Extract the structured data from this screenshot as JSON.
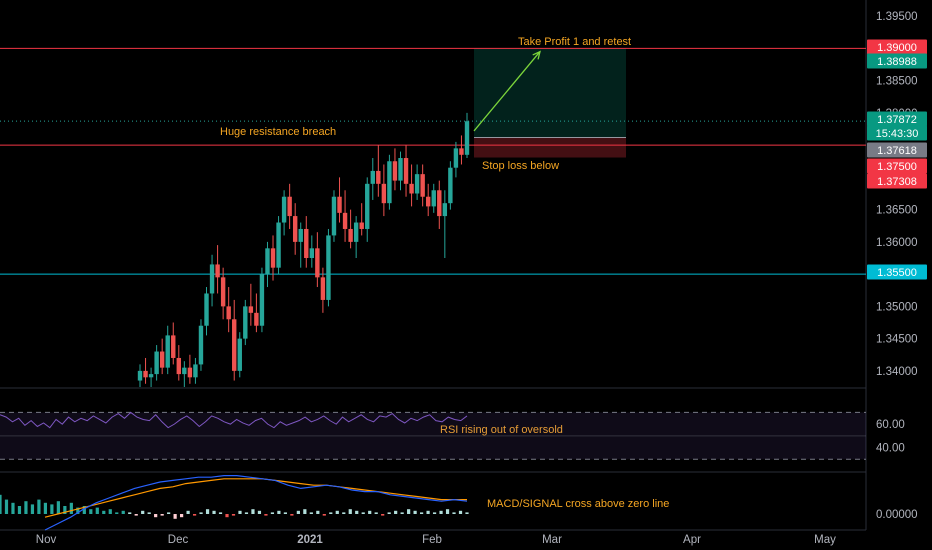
{
  "chart_data": {
    "type": "candlestick",
    "instrument_note": "",
    "price_axis": {
      "ticks": [
        "1.39500",
        "1.38500",
        "1.38000",
        "1.36500",
        "1.36000",
        "1.35500",
        "1.35000",
        "1.34500",
        "1.34000"
      ],
      "tick_values": [
        1.395,
        1.385,
        1.38,
        1.365,
        1.36,
        1.355,
        1.35,
        1.345,
        1.34
      ],
      "range": [
        1.3375,
        1.3975
      ]
    },
    "time_axis": {
      "labels": [
        "Nov",
        "Dec",
        "2021",
        "Feb",
        "Mar",
        "Apr",
        "May"
      ],
      "bold": [
        false,
        false,
        true,
        false,
        false,
        false,
        false
      ]
    },
    "price_tags": [
      {
        "label": "1.39000",
        "value": 1.39,
        "color": "#f23645"
      },
      {
        "label": "1.38988",
        "value": 1.38988,
        "color": "#089981"
      },
      {
        "label": "1.37872",
        "value": 1.37872,
        "color": "#089981"
      },
      {
        "label": "15:43:30",
        "value": 1.3774,
        "color": "#089981"
      },
      {
        "label": "1.37618",
        "value": 1.37618,
        "color": "#787b86"
      },
      {
        "label": "1.37500",
        "value": 1.375,
        "color": "#f23645"
      },
      {
        "label": "1.37308",
        "value": 1.37308,
        "color": "#f23645"
      },
      {
        "label": "1.35500",
        "value": 1.355,
        "color": "#00bcd4"
      }
    ],
    "horizontal_lines": [
      {
        "value": 1.39,
        "color": "#f23645"
      },
      {
        "value": 1.375,
        "color": "#f23645"
      },
      {
        "value": 1.355,
        "color": "#00bcd4"
      }
    ],
    "position": {
      "entry": 1.37618,
      "target": 1.39,
      "stop": 1.37308
    },
    "annotations": [
      {
        "text": "Take Profit 1 and retest"
      },
      {
        "text": "Huge resistance breach"
      },
      {
        "text": "Stop loss below"
      },
      {
        "text": "RSI rising out of oversold"
      },
      {
        "text": "MACD/SIGNAL cross above zero line"
      }
    ],
    "rsi": {
      "ticks": [
        "60.00",
        "40.00"
      ],
      "values": [
        68,
        66,
        62,
        65,
        59,
        63,
        58,
        61,
        57,
        64,
        60,
        66,
        62,
        65,
        63,
        67,
        64,
        61,
        66,
        69,
        65,
        70,
        66,
        64,
        63,
        68,
        62,
        57,
        60,
        64,
        67,
        63,
        58,
        62,
        67,
        65,
        62,
        60,
        64,
        61,
        59,
        63,
        65,
        60,
        57,
        62,
        59,
        61,
        63,
        66,
        62,
        64,
        67,
        63,
        60,
        66,
        62,
        65,
        68,
        64,
        62,
        67,
        66,
        69,
        64,
        61,
        65,
        63,
        66,
        68,
        63,
        62,
        66,
        64,
        63,
        67
      ]
    },
    "macd": {
      "ticks": [
        "0.00000"
      ],
      "macd_line": [
        -0.001,
        -0.0006,
        -0.0002,
        0.0003,
        0.0007,
        0.001,
        0.0013,
        0.0016,
        0.0018,
        0.002,
        0.0021,
        0.0022,
        0.0023,
        0.0023,
        0.0024,
        0.0024,
        0.0023,
        0.0022,
        0.0021,
        0.0018,
        0.0016,
        0.0017,
        0.0018,
        0.0017,
        0.0015,
        0.0014,
        0.0014,
        0.0012,
        0.0011,
        0.001,
        0.0009,
        0.0008,
        0.0009,
        0.0008
      ],
      "signal_line": [
        -0.0002,
        0.0,
        0.0002,
        0.0004,
        0.0006,
        0.0008,
        0.001,
        0.0012,
        0.0014,
        0.0016,
        0.0017,
        0.0019,
        0.002,
        0.0021,
        0.0022,
        0.0022,
        0.0022,
        0.0022,
        0.0021,
        0.002,
        0.0019,
        0.0018,
        0.0018,
        0.0017,
        0.0016,
        0.0015,
        0.0014,
        0.0013,
        0.0012,
        0.0011,
        0.001,
        0.0009,
        0.0009,
        0.0009
      ],
      "histogram": [
        0.0012,
        0.0009,
        0.0007,
        0.0005,
        0.0008,
        0.0006,
        0.0009,
        0.0007,
        0.0006,
        0.0008,
        0.0005,
        0.0007,
        0.0004,
        0.0005,
        0.0003,
        0.0004,
        0.0002,
        0.0003,
        0.0001,
        0.0002,
        0.0001,
        -0.0001,
        0.0002,
        0.0001,
        -0.0002,
        -0.0001,
        0.0001,
        -0.0003,
        -0.0002,
        0.0002,
        -0.0001,
        0.0001,
        0.0003,
        0.0002,
        0.0001,
        -0.0002,
        -0.0001,
        0.0002,
        0.0001,
        0.0003,
        0.0002,
        -0.0001,
        0.0001,
        0.0002,
        0.0001,
        -0.0001,
        0.0002,
        0.0003,
        0.0001,
        0.0002,
        -0.0001,
        0.0001,
        0.0002,
        0.0001,
        0.0003,
        0.0002,
        0.0001,
        0.0002,
        0.0001,
        -0.0001,
        0.0001,
        0.0002,
        0.0001,
        0.0003,
        0.0002,
        0.0001,
        0.0002,
        0.0001,
        0.0002,
        0.0003,
        0.0001,
        0.0002,
        0.0001
      ]
    },
    "candles": [
      {
        "o": 1.3385,
        "h": 1.341,
        "l": 1.337,
        "c": 1.34
      },
      {
        "o": 1.34,
        "h": 1.342,
        "l": 1.338,
        "c": 1.339
      },
      {
        "o": 1.339,
        "h": 1.3405,
        "l": 1.3375,
        "c": 1.3395
      },
      {
        "o": 1.3395,
        "h": 1.344,
        "l": 1.3385,
        "c": 1.343
      },
      {
        "o": 1.343,
        "h": 1.345,
        "l": 1.3395,
        "c": 1.3405
      },
      {
        "o": 1.3405,
        "h": 1.347,
        "l": 1.3395,
        "c": 1.3455
      },
      {
        "o": 1.3455,
        "h": 1.3475,
        "l": 1.341,
        "c": 1.342
      },
      {
        "o": 1.342,
        "h": 1.344,
        "l": 1.3385,
        "c": 1.3395
      },
      {
        "o": 1.3395,
        "h": 1.3415,
        "l": 1.3375,
        "c": 1.3405
      },
      {
        "o": 1.3405,
        "h": 1.3425,
        "l": 1.338,
        "c": 1.339
      },
      {
        "o": 1.339,
        "h": 1.342,
        "l": 1.338,
        "c": 1.341
      },
      {
        "o": 1.341,
        "h": 1.348,
        "l": 1.34,
        "c": 1.347
      },
      {
        "o": 1.347,
        "h": 1.353,
        "l": 1.3455,
        "c": 1.352
      },
      {
        "o": 1.352,
        "h": 1.358,
        "l": 1.35,
        "c": 1.3565
      },
      {
        "o": 1.3565,
        "h": 1.3595,
        "l": 1.352,
        "c": 1.3545
      },
      {
        "o": 1.3545,
        "h": 1.356,
        "l": 1.348,
        "c": 1.35
      },
      {
        "o": 1.35,
        "h": 1.353,
        "l": 1.346,
        "c": 1.348
      },
      {
        "o": 1.348,
        "h": 1.351,
        "l": 1.3385,
        "c": 1.34
      },
      {
        "o": 1.34,
        "h": 1.346,
        "l": 1.339,
        "c": 1.345
      },
      {
        "o": 1.345,
        "h": 1.351,
        "l": 1.344,
        "c": 1.35
      },
      {
        "o": 1.35,
        "h": 1.3535,
        "l": 1.347,
        "c": 1.349
      },
      {
        "o": 1.349,
        "h": 1.352,
        "l": 1.346,
        "c": 1.347
      },
      {
        "o": 1.347,
        "h": 1.356,
        "l": 1.346,
        "c": 1.355
      },
      {
        "o": 1.355,
        "h": 1.36,
        "l": 1.353,
        "c": 1.359
      },
      {
        "o": 1.359,
        "h": 1.361,
        "l": 1.354,
        "c": 1.356
      },
      {
        "o": 1.356,
        "h": 1.364,
        "l": 1.355,
        "c": 1.363
      },
      {
        "o": 1.363,
        "h": 1.368,
        "l": 1.361,
        "c": 1.367
      },
      {
        "o": 1.367,
        "h": 1.369,
        "l": 1.362,
        "c": 1.364
      },
      {
        "o": 1.364,
        "h": 1.366,
        "l": 1.358,
        "c": 1.36
      },
      {
        "o": 1.36,
        "h": 1.363,
        "l": 1.356,
        "c": 1.362
      },
      {
        "o": 1.362,
        "h": 1.364,
        "l": 1.356,
        "c": 1.3575
      },
      {
        "o": 1.3575,
        "h": 1.361,
        "l": 1.356,
        "c": 1.359
      },
      {
        "o": 1.359,
        "h": 1.3615,
        "l": 1.353,
        "c": 1.3545
      },
      {
        "o": 1.3545,
        "h": 1.356,
        "l": 1.349,
        "c": 1.351
      },
      {
        "o": 1.351,
        "h": 1.362,
        "l": 1.35,
        "c": 1.361
      },
      {
        "o": 1.361,
        "h": 1.368,
        "l": 1.36,
        "c": 1.367
      },
      {
        "o": 1.367,
        "h": 1.37,
        "l": 1.363,
        "c": 1.3645
      },
      {
        "o": 1.3645,
        "h": 1.368,
        "l": 1.36,
        "c": 1.362
      },
      {
        "o": 1.362,
        "h": 1.365,
        "l": 1.359,
        "c": 1.36
      },
      {
        "o": 1.36,
        "h": 1.364,
        "l": 1.3575,
        "c": 1.363
      },
      {
        "o": 1.363,
        "h": 1.366,
        "l": 1.361,
        "c": 1.362
      },
      {
        "o": 1.362,
        "h": 1.37,
        "l": 1.36,
        "c": 1.369
      },
      {
        "o": 1.369,
        "h": 1.373,
        "l": 1.3665,
        "c": 1.371
      },
      {
        "o": 1.371,
        "h": 1.375,
        "l": 1.367,
        "c": 1.369
      },
      {
        "o": 1.369,
        "h": 1.372,
        "l": 1.364,
        "c": 1.366
      },
      {
        "o": 1.366,
        "h": 1.3735,
        "l": 1.365,
        "c": 1.3725
      },
      {
        "o": 1.3725,
        "h": 1.3745,
        "l": 1.368,
        "c": 1.3695
      },
      {
        "o": 1.3695,
        "h": 1.374,
        "l": 1.368,
        "c": 1.373
      },
      {
        "o": 1.373,
        "h": 1.375,
        "l": 1.367,
        "c": 1.369
      },
      {
        "o": 1.369,
        "h": 1.372,
        "l": 1.3655,
        "c": 1.3675
      },
      {
        "o": 1.3675,
        "h": 1.372,
        "l": 1.3665,
        "c": 1.3705
      },
      {
        "o": 1.3705,
        "h": 1.372,
        "l": 1.3655,
        "c": 1.367
      },
      {
        "o": 1.367,
        "h": 1.369,
        "l": 1.364,
        "c": 1.3655
      },
      {
        "o": 1.3655,
        "h": 1.369,
        "l": 1.3645,
        "c": 1.368
      },
      {
        "o": 1.368,
        "h": 1.3695,
        "l": 1.362,
        "c": 1.364
      },
      {
        "o": 1.364,
        "h": 1.368,
        "l": 1.3575,
        "c": 1.366
      },
      {
        "o": 1.366,
        "h": 1.3725,
        "l": 1.365,
        "c": 1.3715
      },
      {
        "o": 1.3715,
        "h": 1.3755,
        "l": 1.37,
        "c": 1.3745
      },
      {
        "o": 1.3745,
        "h": 1.3765,
        "l": 1.372,
        "c": 1.3735
      },
      {
        "o": 1.3735,
        "h": 1.38,
        "l": 1.373,
        "c": 1.3787
      }
    ]
  }
}
